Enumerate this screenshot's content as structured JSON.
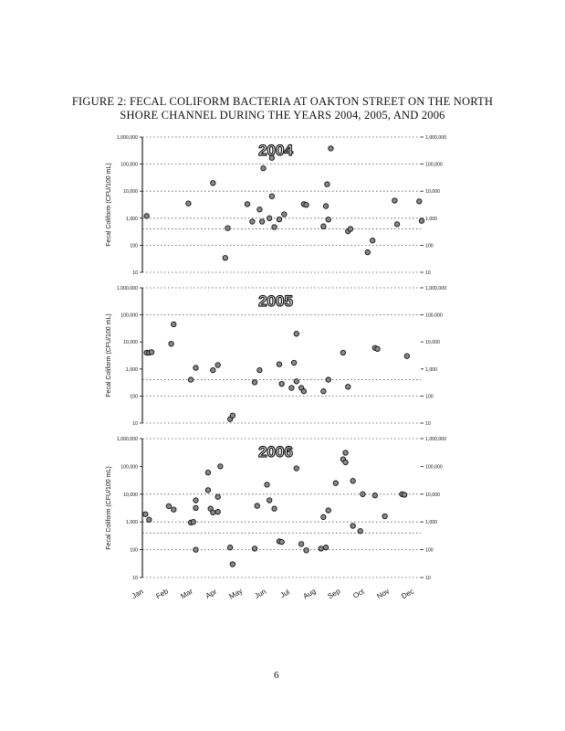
{
  "figure": {
    "title_line1": "FIGURE 2: FECAL COLIFORM BACTERIA AT OAKTON STREET ON THE NORTH",
    "title_line2": "SHORE CHANNEL DURING THE YEARS 2004, 2005, AND 2006"
  },
  "page_number": "6",
  "colors": {
    "ink": "#111111",
    "grid": "#555555",
    "point_fill": "#8a8a8a",
    "year_fill": "#ffffff"
  },
  "chart_data": [
    {
      "type": "scatter",
      "year_label": "2004",
      "ylabel": "Fecal Coliform (CFU/100 mL)",
      "y_scale": "log",
      "ylim": [
        10,
        1000000
      ],
      "y_ticks": [
        10,
        100,
        1000,
        10000,
        100000,
        1000000
      ],
      "y_tick_labels_left": [
        "10",
        "100",
        "1,000",
        "10,000",
        "100,000",
        "1,000,000"
      ],
      "y_tick_labels_right": [
        "10",
        "100",
        "1,000",
        "10,000",
        "100,000",
        "1,000,000"
      ],
      "reference_lines": [
        100000,
        10000,
        1000,
        400,
        100
      ],
      "x_months": [
        "Jan",
        "Feb",
        "Mar",
        "Apr",
        "May",
        "Jun",
        "Jul",
        "Aug",
        "Sep",
        "Oct",
        "Nov",
        "Dec"
      ],
      "points": [
        {
          "month": 0.1,
          "y": 1200
        },
        {
          "month": 1.8,
          "y": 3500
        },
        {
          "month": 2.8,
          "y": 20000
        },
        {
          "month": 3.3,
          "y": 34
        },
        {
          "month": 3.4,
          "y": 430
        },
        {
          "month": 4.2,
          "y": 3300
        },
        {
          "month": 4.4,
          "y": 750
        },
        {
          "month": 4.7,
          "y": 2100
        },
        {
          "month": 4.8,
          "y": 750
        },
        {
          "month": 4.85,
          "y": 70000
        },
        {
          "month": 5.1,
          "y": 1000
        },
        {
          "month": 5.2,
          "y": 170000
        },
        {
          "month": 5.2,
          "y": 6500
        },
        {
          "month": 5.3,
          "y": 470
        },
        {
          "month": 5.5,
          "y": 900
        },
        {
          "month": 5.7,
          "y": 1400
        },
        {
          "month": 6.5,
          "y": 3300
        },
        {
          "month": 6.6,
          "y": 3100
        },
        {
          "month": 7.3,
          "y": 500
        },
        {
          "month": 7.4,
          "y": 2800
        },
        {
          "month": 7.45,
          "y": 18000
        },
        {
          "month": 7.5,
          "y": 890
        },
        {
          "month": 7.6,
          "y": 380000
        },
        {
          "month": 8.3,
          "y": 330
        },
        {
          "month": 8.4,
          "y": 400
        },
        {
          "month": 9.1,
          "y": 55
        },
        {
          "month": 9.3,
          "y": 150
        },
        {
          "month": 10.2,
          "y": 4500
        },
        {
          "month": 10.3,
          "y": 600
        },
        {
          "month": 11.2,
          "y": 4200
        },
        {
          "month": 11.3,
          "y": 800
        }
      ]
    },
    {
      "type": "scatter",
      "year_label": "2005",
      "ylabel": "Fecal Coliform (CFU/100 mL)",
      "y_scale": "log",
      "ylim": [
        10,
        1000000
      ],
      "y_ticks": [
        10,
        100,
        1000,
        10000,
        100000,
        1000000
      ],
      "y_tick_labels_left": [
        "10",
        "100",
        "1,000",
        "10,000",
        "100,000",
        "1,000,000"
      ],
      "y_tick_labels_right": [
        "10",
        "100",
        "1,000",
        "10,000",
        "100,000",
        "1,000,000"
      ],
      "reference_lines": [
        100000,
        400,
        100
      ],
      "x_months": [
        "Jan",
        "Feb",
        "Mar",
        "Apr",
        "May",
        "Jun",
        "Jul",
        "Aug",
        "Sep",
        "Oct",
        "Nov",
        "Dec"
      ],
      "points": [
        {
          "month": 0.1,
          "y": 4000
        },
        {
          "month": 0.2,
          "y": 4000
        },
        {
          "month": 0.3,
          "y": 4200
        },
        {
          "month": 1.2,
          "y": 45000
        },
        {
          "month": 1.1,
          "y": 8500
        },
        {
          "month": 1.9,
          "y": 400
        },
        {
          "month": 2.1,
          "y": 1100
        },
        {
          "month": 2.8,
          "y": 900
        },
        {
          "month": 3.0,
          "y": 1400
        },
        {
          "month": 3.5,
          "y": 14
        },
        {
          "month": 3.6,
          "y": 19
        },
        {
          "month": 4.5,
          "y": 320
        },
        {
          "month": 4.7,
          "y": 900
        },
        {
          "month": 5.5,
          "y": 1500
        },
        {
          "month": 5.6,
          "y": 280
        },
        {
          "month": 6.0,
          "y": 200
        },
        {
          "month": 6.1,
          "y": 1700
        },
        {
          "month": 6.2,
          "y": 20000
        },
        {
          "month": 6.2,
          "y": 350
        },
        {
          "month": 6.4,
          "y": 200
        },
        {
          "month": 6.5,
          "y": 150
        },
        {
          "month": 7.3,
          "y": 150
        },
        {
          "month": 7.5,
          "y": 400
        },
        {
          "month": 8.1,
          "y": 4000
        },
        {
          "month": 8.3,
          "y": 220
        },
        {
          "month": 9.4,
          "y": 6000
        },
        {
          "month": 9.5,
          "y": 5500
        },
        {
          "month": 10.7,
          "y": 3000
        }
      ]
    },
    {
      "type": "scatter",
      "year_label": "2006",
      "ylabel": "Fecal Coliform (CFU/100 mL)",
      "y_scale": "log",
      "ylim": [
        10,
        1000000
      ],
      "y_ticks": [
        10,
        100,
        1000,
        10000,
        100000,
        1000000
      ],
      "y_tick_labels_left": [
        "10",
        "100",
        "1,000",
        "10,000",
        "100,000",
        "1,000,000"
      ],
      "y_tick_labels_right": [
        "10",
        "100",
        "1,000",
        "10,000",
        "100,000",
        "1,000,000"
      ],
      "reference_lines": [
        10000,
        1000,
        400,
        100
      ],
      "x_months": [
        "Jan",
        "Feb",
        "Mar",
        "Apr",
        "May",
        "Jun",
        "Jul",
        "Aug",
        "Sep",
        "Oct",
        "Nov",
        "Dec"
      ],
      "points": [
        {
          "month": 0.05,
          "y": 1900
        },
        {
          "month": 0.2,
          "y": 1200
        },
        {
          "month": 1.0,
          "y": 3700
        },
        {
          "month": 1.2,
          "y": 2800
        },
        {
          "month": 1.9,
          "y": 950
        },
        {
          "month": 2.0,
          "y": 1000
        },
        {
          "month": 2.1,
          "y": 6000
        },
        {
          "month": 2.1,
          "y": 3200
        },
        {
          "month": 2.1,
          "y": 100
        },
        {
          "month": 2.6,
          "y": 60000
        },
        {
          "month": 2.6,
          "y": 14000
        },
        {
          "month": 2.7,
          "y": 3000
        },
        {
          "month": 2.8,
          "y": 2200
        },
        {
          "month": 3.0,
          "y": 2300
        },
        {
          "month": 3.0,
          "y": 8000
        },
        {
          "month": 3.1,
          "y": 100000
        },
        {
          "month": 3.5,
          "y": 120
        },
        {
          "month": 3.6,
          "y": 30
        },
        {
          "month": 4.5,
          "y": 110
        },
        {
          "month": 4.6,
          "y": 3800
        },
        {
          "month": 5.0,
          "y": 22000
        },
        {
          "month": 5.1,
          "y": 6000
        },
        {
          "month": 5.3,
          "y": 3000
        },
        {
          "month": 5.5,
          "y": 200
        },
        {
          "month": 5.6,
          "y": 190
        },
        {
          "month": 6.2,
          "y": 85000
        },
        {
          "month": 6.4,
          "y": 160
        },
        {
          "month": 6.6,
          "y": 95
        },
        {
          "month": 7.2,
          "y": 110
        },
        {
          "month": 7.4,
          "y": 120
        },
        {
          "month": 7.3,
          "y": 1500
        },
        {
          "month": 7.5,
          "y": 2600
        },
        {
          "month": 7.8,
          "y": 25000
        },
        {
          "month": 8.2,
          "y": 310000
        },
        {
          "month": 8.1,
          "y": 180000
        },
        {
          "month": 8.2,
          "y": 140000
        },
        {
          "month": 8.5,
          "y": 30000
        },
        {
          "month": 8.5,
          "y": 720
        },
        {
          "month": 8.8,
          "y": 470
        },
        {
          "month": 8.9,
          "y": 10000
        },
        {
          "month": 9.4,
          "y": 9000
        },
        {
          "month": 9.8,
          "y": 1600
        },
        {
          "month": 10.5,
          "y": 10000
        },
        {
          "month": 10.6,
          "y": 9500
        }
      ]
    }
  ]
}
